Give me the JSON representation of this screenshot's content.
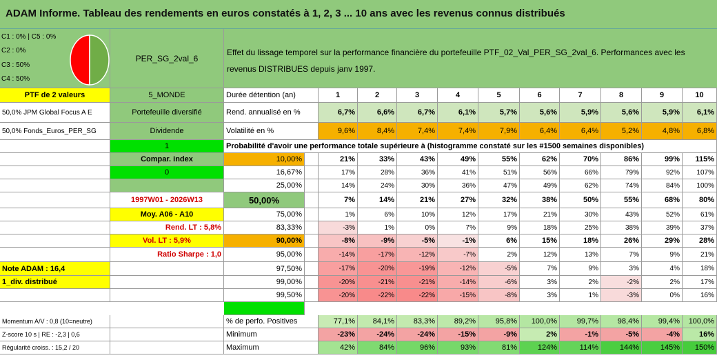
{
  "title": "ADAM Informe. Tableau des rendements en euros constatés à 1, 2, 3 ... 10 ans avec les revenus connus distribués",
  "corner": {
    "line1": "C1 : 0%  | C5 : 0%",
    "line2": "C2 : 0%",
    "line3": "C3 : 50%",
    "line4": "C4 : 50%",
    "pie_colors": [
      "#ff0000",
      "#70ad47"
    ],
    "pie_fractions": [
      0.5,
      0.5
    ]
  },
  "portfolio_name": "PER_SG_2val_6",
  "description": "Effet du lissage temporel sur la performance financière du portefeuille PTF_02_Val_PER_SG_2val_6. Performances avec les revenus DISTRIBUES depuis janv 1997.",
  "left": {
    "ptf_label": "PTF de 2 valeurs",
    "monde": "5_MONDE",
    "holding1": "50,0% JPM Global Focus A E",
    "diversifie": "Portefeuille diversifié",
    "holding2": "50,0% Fonds_Euros_PER_SG",
    "dividende": "Dividende",
    "one": "1",
    "compar": "Compar. index",
    "zero": "0",
    "period": "1997W01 - 2026W13",
    "moy": "Moy. A06 - A10",
    "rend_lt": "Rend. LT : 5,8%",
    "vol_lt": "Vol. LT : 5,9%",
    "sharpe": "Ratio Sharpe : 1,0",
    "note": "Note ADAM : 16,4",
    "div": "1_div. distribué",
    "momentum": "Momentum A/V : 0,8 (10=neutre)",
    "zscore": "Z-score 10 s | RE : -2,3 | 0,6",
    "regularite": "Régularité croiss. : 15,2 / 20"
  },
  "duree_label": "Durée détention (an)",
  "years": [
    "1",
    "2",
    "3",
    "4",
    "5",
    "6",
    "7",
    "8",
    "9",
    "10"
  ],
  "rend_label": "Rend. annualisé en %",
  "rend": [
    "6,7%",
    "6,6%",
    "6,7%",
    "6,1%",
    "5,7%",
    "5,6%",
    "5,9%",
    "5,6%",
    "5,9%",
    "6,1%"
  ],
  "vol_label": "Volatilité en %",
  "vol": [
    "9,6%",
    "8,4%",
    "7,4%",
    "7,4%",
    "7,9%",
    "6,4%",
    "6,4%",
    "5,2%",
    "4,8%",
    "6,8%"
  ],
  "proba_label": "Probabilité d'avoir une performance totale supérieure à (histogramme constaté sur les #1500 semaines disponibles)",
  "prob_rows": [
    {
      "p": "10,00%",
      "v": [
        "21%",
        "33%",
        "43%",
        "49%",
        "55%",
        "62%",
        "70%",
        "86%",
        "99%",
        "115%"
      ]
    },
    {
      "p": "16,67%",
      "v": [
        "17%",
        "28%",
        "36%",
        "41%",
        "51%",
        "56%",
        "66%",
        "79%",
        "92%",
        "107%"
      ]
    },
    {
      "p": "25,00%",
      "v": [
        "14%",
        "24%",
        "30%",
        "36%",
        "47%",
        "49%",
        "62%",
        "74%",
        "84%",
        "100%"
      ]
    },
    {
      "p": "50,00%",
      "v": [
        "7%",
        "14%",
        "21%",
        "27%",
        "32%",
        "38%",
        "50%",
        "55%",
        "68%",
        "80%"
      ]
    },
    {
      "p": "75,00%",
      "v": [
        "1%",
        "6%",
        "10%",
        "12%",
        "17%",
        "21%",
        "30%",
        "43%",
        "52%",
        "61%"
      ]
    },
    {
      "p": "83,33%",
      "v": [
        "-3%",
        "1%",
        "0%",
        "7%",
        "9%",
        "18%",
        "25%",
        "38%",
        "39%",
        "37%"
      ]
    },
    {
      "p": "90,00%",
      "v": [
        "-8%",
        "-9%",
        "-5%",
        "-1%",
        "6%",
        "15%",
        "18%",
        "26%",
        "29%",
        "28%"
      ]
    },
    {
      "p": "95,00%",
      "v": [
        "-14%",
        "-17%",
        "-12%",
        "-7%",
        "2%",
        "12%",
        "13%",
        "7%",
        "9%",
        "21%"
      ]
    },
    {
      "p": "97,50%",
      "v": [
        "-17%",
        "-20%",
        "-19%",
        "-12%",
        "-5%",
        "7%",
        "9%",
        "3%",
        "4%",
        "18%"
      ]
    },
    {
      "p": "99,00%",
      "v": [
        "-20%",
        "-21%",
        "-21%",
        "-14%",
        "-6%",
        "3%",
        "2%",
        "-2%",
        "2%",
        "17%"
      ]
    },
    {
      "p": "99,50%",
      "v": [
        "-20%",
        "-22%",
        "-22%",
        "-15%",
        "-8%",
        "3%",
        "1%",
        "-3%",
        "0%",
        "16%"
      ]
    }
  ],
  "pos_label": "% de perfo. Positives",
  "pos": [
    "77,1%",
    "84,1%",
    "83,3%",
    "89,2%",
    "95,8%",
    "100,0%",
    "99,7%",
    "98,4%",
    "99,4%",
    "100,0%"
  ],
  "min_label": "Minimum",
  "min": [
    "-23%",
    "-24%",
    "-24%",
    "-15%",
    "-9%",
    "2%",
    "-1%",
    "-5%",
    "-4%",
    "16%"
  ],
  "max_label": "Maximum",
  "max": [
    "42%",
    "84%",
    "96%",
    "93%",
    "81%",
    "124%",
    "114%",
    "144%",
    "145%",
    "150%"
  ],
  "colors": {
    "header_green": "#90c97c",
    "yellow": "#ffff00",
    "orange": "#f6b000",
    "bright_green": "#00e000",
    "red_text": "#d00000"
  }
}
